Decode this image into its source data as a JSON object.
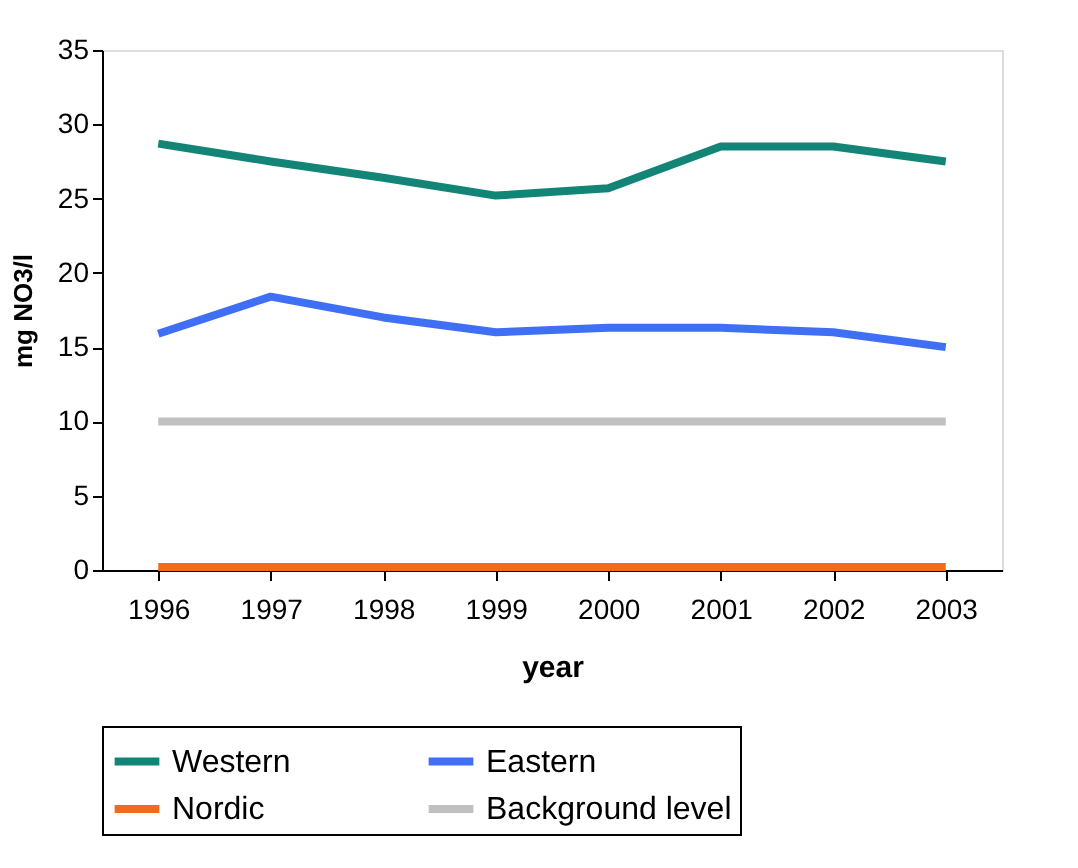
{
  "chart_data": {
    "type": "line",
    "xlabel": "year",
    "ylabel": "mg NO3/l",
    "categories": [
      "1996",
      "1997",
      "1998",
      "1999",
      "2000",
      "2001",
      "2002",
      "2003"
    ],
    "series": [
      {
        "name": "Western",
        "color": "#138577",
        "values": [
          28.7,
          27.5,
          26.4,
          25.2,
          25.7,
          28.5,
          28.5,
          27.5
        ]
      },
      {
        "name": "Eastern",
        "color": "#3f6ff5",
        "values": [
          15.9,
          18.4,
          17.0,
          16.0,
          16.3,
          16.3,
          16.0,
          15.0
        ]
      },
      {
        "name": "Nordic",
        "color": "#f26b1d",
        "values": [
          0.2,
          0.2,
          0.2,
          0.2,
          0.2,
          0.2,
          0.2,
          0.2
        ]
      },
      {
        "name": "Background level",
        "color": "#c0c0c0",
        "values": [
          10,
          10,
          10,
          10,
          10,
          10,
          10,
          10
        ]
      }
    ],
    "ylim": [
      0,
      35
    ],
    "yticks": [
      0,
      5,
      10,
      15,
      20,
      25,
      30,
      35
    ],
    "grid": false,
    "legend": "bottom",
    "marker": "none",
    "line_style": "solid"
  }
}
